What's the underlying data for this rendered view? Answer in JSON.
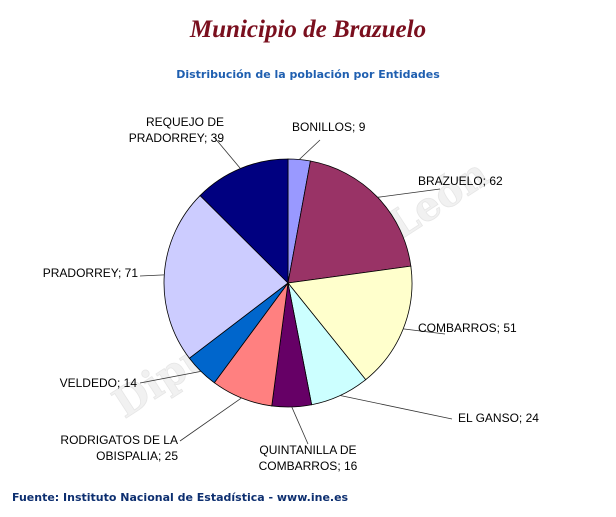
{
  "header": {
    "title": "Municipio de Brazuelo",
    "subtitle": "Distribución de la población por Entidades"
  },
  "footer": {
    "source": "Fuente: Instituto Nacional de Estadística - www.ine.es"
  },
  "chart_data": {
    "type": "pie",
    "title": "Municipio de Brazuelo",
    "subtitle": "Distribución de la población por Entidades",
    "slices": [
      {
        "label": [
          "BONILLOS; 9"
        ],
        "value": 9,
        "color": "#9999ff"
      },
      {
        "label": [
          "BRAZUELO; 62"
        ],
        "value": 62,
        "color": "#993366"
      },
      {
        "label": [
          "COMBARROS; 51"
        ],
        "value": 51,
        "color": "#ffffcc"
      },
      {
        "label": [
          "EL GANSO; 24"
        ],
        "value": 24,
        "color": "#ccffff"
      },
      {
        "label": [
          "QUINTANILLA DE",
          "COMBARROS; 16"
        ],
        "value": 16,
        "color": "#660066"
      },
      {
        "label": [
          "RODRIGATOS DE LA",
          "OBISPALIA; 25"
        ],
        "value": 25,
        "color": "#ff8080"
      },
      {
        "label": [
          "VELDEDO; 14"
        ],
        "value": 14,
        "color": "#0066cc"
      },
      {
        "label": [
          "PRADORREY; 71"
        ],
        "value": 71,
        "color": "#ccccff"
      },
      {
        "label": [
          "REQUEJO DE",
          "PRADORREY; 39"
        ],
        "value": 39,
        "color": "#000080"
      }
    ],
    "legend": "none",
    "watermark": "Diputación de León"
  }
}
